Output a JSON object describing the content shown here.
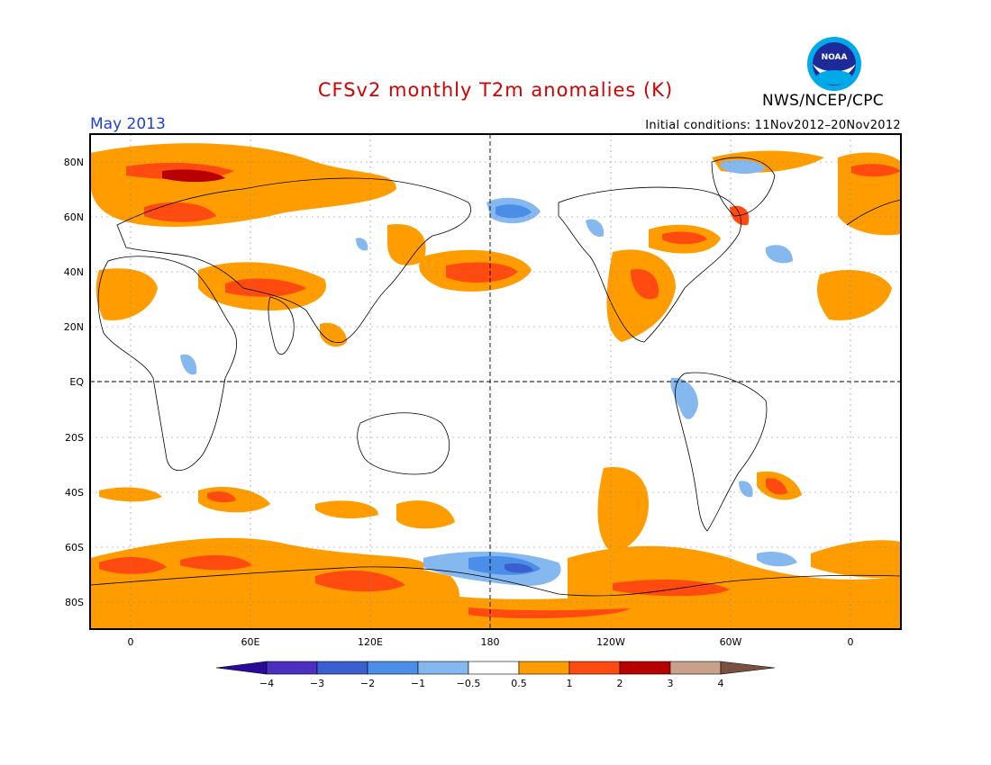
{
  "header": {
    "title": "CFSv2 monthly T2m anomalies (K)",
    "month": "May 2013",
    "initial_conditions": "Initial conditions: 11Nov2012–20Nov2012",
    "agency": "NWS/NCEP/CPC",
    "logo_text": "NOAA"
  },
  "map": {
    "lon_labels": [
      "0",
      "60E",
      "120E",
      "180",
      "120W",
      "60W",
      "0"
    ],
    "lat_labels": [
      "80N",
      "60N",
      "40N",
      "20N",
      "EQ",
      "20S",
      "40S",
      "60S",
      "80S"
    ]
  },
  "colorbar": {
    "labels": [
      "−4",
      "−3",
      "−2",
      "−1",
      "−0.5",
      "0.5",
      "1",
      "2",
      "3",
      "4"
    ],
    "colors": [
      "#4a2fc0",
      "#3a5fd0",
      "#4a8ee8",
      "#86b8f0",
      "#ffffff",
      "#ff9d00",
      "#ff4a10",
      "#b80000",
      "#c9a08a"
    ],
    "left_end_color": "#2a0a9a",
    "right_end_color": "#7a5040"
  },
  "colors": {
    "warm1": "#ff9d00",
    "warm2": "#ff4a10",
    "warm3": "#b80000",
    "cool1": "#86b8f0",
    "cool2": "#4a8ee8",
    "cool3": "#3a5fd0"
  }
}
